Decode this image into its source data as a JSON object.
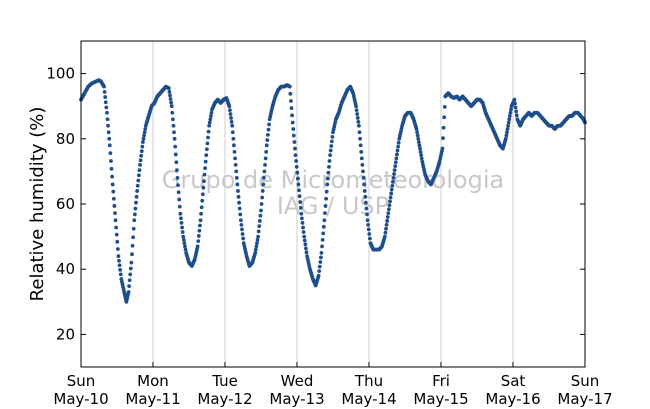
{
  "chart_data": {
    "type": "scatter",
    "title": "",
    "xlabel": "",
    "ylabel": "Relative humidity (%)",
    "xlim": [
      "2015-05-10 00:00",
      "2015-05-17 00:00"
    ],
    "ylim": [
      10,
      110
    ],
    "yticks": [
      20,
      40,
      60,
      80,
      100
    ],
    "xticks": [
      {
        "day": "Sun",
        "date": "May-10"
      },
      {
        "day": "Mon",
        "date": "May-11"
      },
      {
        "day": "Tue",
        "date": "May-12"
      },
      {
        "day": "Wed",
        "date": "May-13"
      },
      {
        "day": "Thu",
        "date": "May-14"
      },
      {
        "day": "Fri",
        "date": "May-15"
      },
      {
        "day": "Sat",
        "date": "May-16"
      },
      {
        "day": "Sun",
        "date": "May-17"
      }
    ],
    "grid": "vertical",
    "marker_color": "#1f4e8c",
    "watermark": [
      "Grupo de Micrometeorologia",
      "IAG / USP"
    ],
    "x_units": "days since 2015-05-10 00:00",
    "series": [
      {
        "points": [
          [
            0.0,
            92
          ],
          [
            0.05,
            94
          ],
          [
            0.1,
            96
          ],
          [
            0.15,
            97
          ],
          [
            0.2,
            97.5
          ],
          [
            0.25,
            98
          ],
          [
            0.28,
            97.5
          ],
          [
            0.32,
            96
          ],
          [
            0.36,
            88
          ],
          [
            0.4,
            78
          ],
          [
            0.44,
            66
          ],
          [
            0.48,
            55
          ],
          [
            0.52,
            44
          ],
          [
            0.56,
            37
          ],
          [
            0.6,
            33
          ],
          [
            0.63,
            30
          ],
          [
            0.66,
            33
          ],
          [
            0.7,
            42
          ],
          [
            0.74,
            55
          ],
          [
            0.78,
            64
          ],
          [
            0.82,
            72
          ],
          [
            0.86,
            79
          ],
          [
            0.9,
            84
          ],
          [
            0.94,
            87
          ],
          [
            0.98,
            90
          ],
          [
            1.02,
            91
          ],
          [
            1.06,
            93
          ],
          [
            1.1,
            94
          ],
          [
            1.14,
            95
          ],
          [
            1.18,
            96
          ],
          [
            1.22,
            95.5
          ],
          [
            1.26,
            90
          ],
          [
            1.3,
            80
          ],
          [
            1.34,
            68
          ],
          [
            1.38,
            57
          ],
          [
            1.42,
            50
          ],
          [
            1.46,
            45
          ],
          [
            1.5,
            42
          ],
          [
            1.54,
            41
          ],
          [
            1.58,
            43
          ],
          [
            1.62,
            47
          ],
          [
            1.66,
            55
          ],
          [
            1.7,
            65
          ],
          [
            1.74,
            75
          ],
          [
            1.78,
            84
          ],
          [
            1.82,
            89
          ],
          [
            1.86,
            91
          ],
          [
            1.9,
            92
          ],
          [
            1.94,
            91
          ],
          [
            1.98,
            92
          ],
          [
            2.02,
            92.5
          ],
          [
            2.06,
            90
          ],
          [
            2.1,
            84
          ],
          [
            2.14,
            74
          ],
          [
            2.18,
            64
          ],
          [
            2.22,
            55
          ],
          [
            2.26,
            48
          ],
          [
            2.3,
            44
          ],
          [
            2.34,
            41
          ],
          [
            2.38,
            42
          ],
          [
            2.42,
            45
          ],
          [
            2.46,
            50
          ],
          [
            2.5,
            58
          ],
          [
            2.54,
            68
          ],
          [
            2.58,
            78
          ],
          [
            2.62,
            86
          ],
          [
            2.66,
            90
          ],
          [
            2.7,
            93
          ],
          [
            2.74,
            95
          ],
          [
            2.78,
            96
          ],
          [
            2.82,
            96
          ],
          [
            2.86,
            96.5
          ],
          [
            2.9,
            96
          ],
          [
            2.94,
            85
          ],
          [
            2.98,
            75
          ],
          [
            3.02,
            66
          ],
          [
            3.06,
            57
          ],
          [
            3.1,
            50
          ],
          [
            3.14,
            44
          ],
          [
            3.18,
            40
          ],
          [
            3.22,
            37
          ],
          [
            3.26,
            35
          ],
          [
            3.3,
            38
          ],
          [
            3.34,
            45
          ],
          [
            3.38,
            55
          ],
          [
            3.42,
            66
          ],
          [
            3.46,
            75
          ],
          [
            3.5,
            82
          ],
          [
            3.54,
            86
          ],
          [
            3.58,
            88
          ],
          [
            3.62,
            91
          ],
          [
            3.66,
            93
          ],
          [
            3.7,
            95
          ],
          [
            3.74,
            96
          ],
          [
            3.78,
            94
          ],
          [
            3.82,
            90
          ],
          [
            3.86,
            84
          ],
          [
            3.9,
            74
          ],
          [
            3.94,
            64
          ],
          [
            3.98,
            55
          ],
          [
            4.02,
            48
          ],
          [
            4.06,
            46
          ],
          [
            4.1,
            46
          ],
          [
            4.14,
            46
          ],
          [
            4.18,
            47
          ],
          [
            4.22,
            50
          ],
          [
            4.26,
            56
          ],
          [
            4.3,
            62
          ],
          [
            4.34,
            68
          ],
          [
            4.38,
            74
          ],
          [
            4.42,
            80
          ],
          [
            4.46,
            84
          ],
          [
            4.5,
            87
          ],
          [
            4.54,
            88
          ],
          [
            4.58,
            88
          ],
          [
            4.62,
            86
          ],
          [
            4.66,
            83
          ],
          [
            4.7,
            78
          ],
          [
            4.74,
            73
          ],
          [
            4.78,
            69
          ],
          [
            4.82,
            67
          ],
          [
            4.86,
            66
          ],
          [
            4.9,
            68
          ],
          [
            4.94,
            70
          ],
          [
            4.98,
            73
          ],
          [
            5.02,
            77
          ],
          [
            5.06,
            93
          ],
          [
            5.1,
            94
          ],
          [
            5.14,
            93
          ],
          [
            5.18,
            92.5
          ],
          [
            5.22,
            93
          ],
          [
            5.26,
            92
          ],
          [
            5.3,
            93
          ],
          [
            5.34,
            92
          ],
          [
            5.38,
            91
          ],
          [
            5.42,
            90
          ],
          [
            5.46,
            91
          ],
          [
            5.5,
            92
          ],
          [
            5.54,
            92
          ],
          [
            5.58,
            91
          ],
          [
            5.62,
            88
          ],
          [
            5.66,
            86
          ],
          [
            5.7,
            84
          ],
          [
            5.74,
            82
          ],
          [
            5.78,
            80
          ],
          [
            5.82,
            78
          ],
          [
            5.86,
            77
          ],
          [
            5.9,
            80
          ],
          [
            5.94,
            85
          ],
          [
            5.98,
            90
          ],
          [
            6.02,
            92
          ],
          [
            6.06,
            86
          ],
          [
            6.1,
            84
          ],
          [
            6.14,
            86
          ],
          [
            6.18,
            87
          ],
          [
            6.22,
            88
          ],
          [
            6.26,
            87
          ],
          [
            6.3,
            88
          ],
          [
            6.34,
            88
          ],
          [
            6.38,
            87
          ],
          [
            6.42,
            86
          ],
          [
            6.46,
            85
          ],
          [
            6.5,
            84
          ],
          [
            6.54,
            84
          ],
          [
            6.58,
            83
          ],
          [
            6.62,
            84
          ],
          [
            6.66,
            84
          ],
          [
            6.7,
            85
          ],
          [
            6.74,
            86
          ],
          [
            6.78,
            87
          ],
          [
            6.82,
            87
          ],
          [
            6.86,
            88
          ],
          [
            6.9,
            88
          ],
          [
            6.94,
            87
          ],
          [
            6.98,
            86
          ],
          [
            7.0,
            85
          ]
        ]
      }
    ]
  }
}
